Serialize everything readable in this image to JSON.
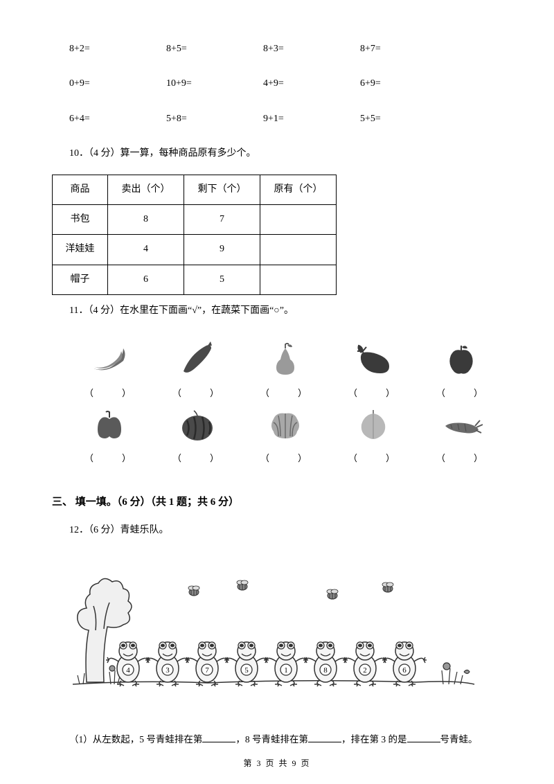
{
  "math_rows": [
    [
      "8+2=",
      "8+5=",
      "8+3=",
      "8+7="
    ],
    [
      "0+9=",
      "10+9=",
      "4+9=",
      "6+9="
    ],
    [
      "6+4=",
      "5+8=",
      "9+1=",
      "5+5="
    ]
  ],
  "q10": {
    "text": "10．（4 分）算一算，每种商品原有多少个。",
    "headers": [
      "商品",
      "卖出（个）",
      "剩下（个）",
      "原有（个）"
    ],
    "rows": [
      [
        "书包",
        "8",
        "7",
        ""
      ],
      [
        "洋娃娃",
        "4",
        "9",
        ""
      ],
      [
        "帽子",
        "6",
        "5",
        ""
      ]
    ]
  },
  "q11": {
    "text": "11．（4 分）在水里在下面画“√”，在蔬菜下面画“○”。",
    "bracket": "（　）"
  },
  "section3": "三、 填一填。（6 分）（共 1 题；共 6 分）",
  "q12": {
    "text": "12．（6 分）青蛙乐队。",
    "frog_numbers": [
      "4",
      "3",
      "7",
      "5",
      "1",
      "8",
      "2",
      "6"
    ],
    "sub1": {
      "prefix": "（1）从左数起，5 号青蛙排在第",
      "mid1": "，8 号青蛙排在第",
      "mid2": "，排在第 3 的是",
      "suffix": "号青蛙。"
    }
  },
  "footer": "第 3 页 共 9 页",
  "colors": {
    "fruit_fill": "#6a6a6a",
    "fruit_dark": "#3a3a3a",
    "frog_line": "#333333",
    "frog_fill": "#e8e8e8"
  }
}
